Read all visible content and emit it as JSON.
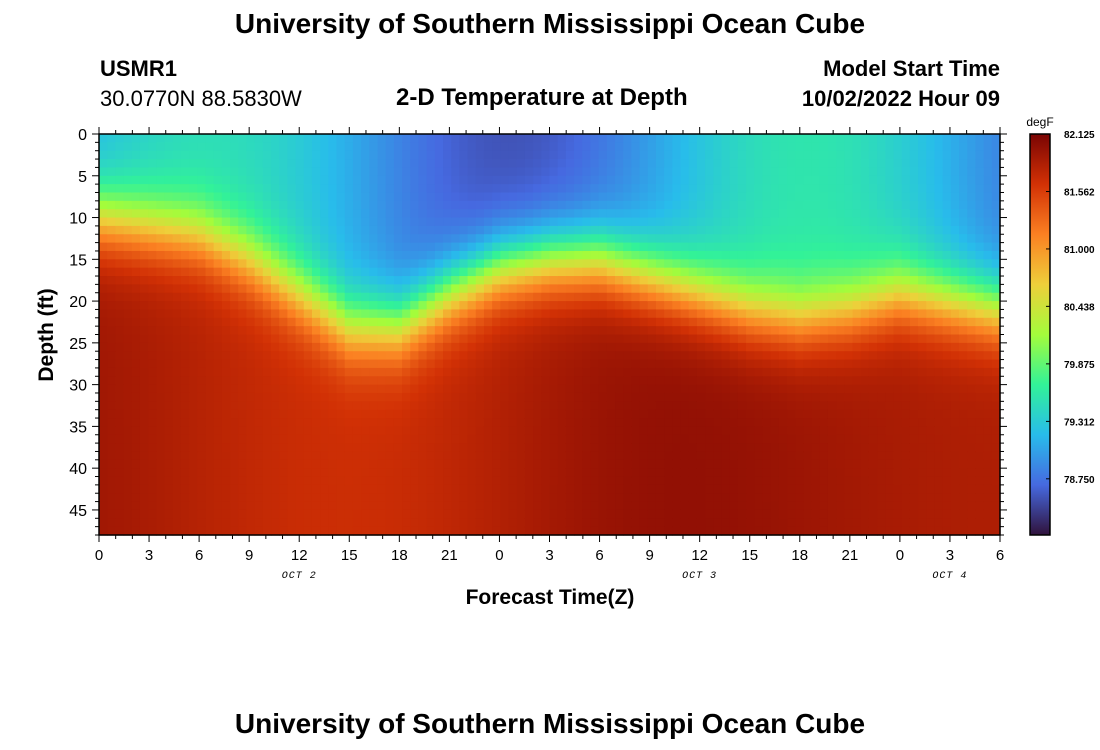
{
  "header": {
    "title": "University of Southern Mississippi Ocean Cube",
    "station_id": "USMR1",
    "station_coords": "30.0770N  88.5830W",
    "plot_subtitle": "2-D Temperature at Depth",
    "model_start_label": "Model Start Time",
    "model_start_value": "10/02/2022 Hour 09"
  },
  "footer": {
    "title": "University of Southern Mississippi Ocean Cube"
  },
  "chart_data": {
    "type": "heatmap",
    "title": "2-D Temperature at Depth",
    "xlabel": "Forecast Time(Z)",
    "ylabel": "Depth (ft)",
    "x_ticks": [
      "0",
      "3",
      "6",
      "9",
      "12",
      "15",
      "18",
      "21",
      "0",
      "3",
      "6",
      "9",
      "12",
      "15",
      "18",
      "21",
      "0",
      "3",
      "6"
    ],
    "x_range_hours": [
      0,
      54
    ],
    "date_labels": [
      {
        "text": "OCT 2",
        "hour": 12
      },
      {
        "text": "OCT 3",
        "hour": 36
      },
      {
        "text": "OCT 4",
        "hour": 51
      }
    ],
    "y_ticks": [
      0,
      5,
      10,
      15,
      20,
      25,
      30,
      35,
      40,
      45
    ],
    "y_range": [
      0,
      48
    ],
    "colorbar": {
      "units": "degF",
      "min": 78.2,
      "max": 82.125,
      "ticks": [
        "82.125",
        "81.562",
        "81.000",
        "80.438",
        "79.875",
        "79.312",
        "78.750"
      ],
      "colors": [
        "#30123b",
        "#4669e0",
        "#28bceb",
        "#32f298",
        "#a4fc3b",
        "#eecf3a",
        "#fb8022",
        "#d23105",
        "#7a0403"
      ]
    },
    "thermocline_depth_ft": {
      "hours": [
        0,
        3,
        6,
        9,
        12,
        15,
        18,
        21,
        24,
        27,
        30,
        33,
        36,
        39,
        42,
        45,
        48,
        51,
        54
      ],
      "depth": [
        10,
        11,
        12,
        15,
        19,
        23,
        23,
        19,
        16,
        15,
        15,
        17,
        19,
        21,
        22,
        21,
        19,
        20,
        21
      ]
    }
  }
}
